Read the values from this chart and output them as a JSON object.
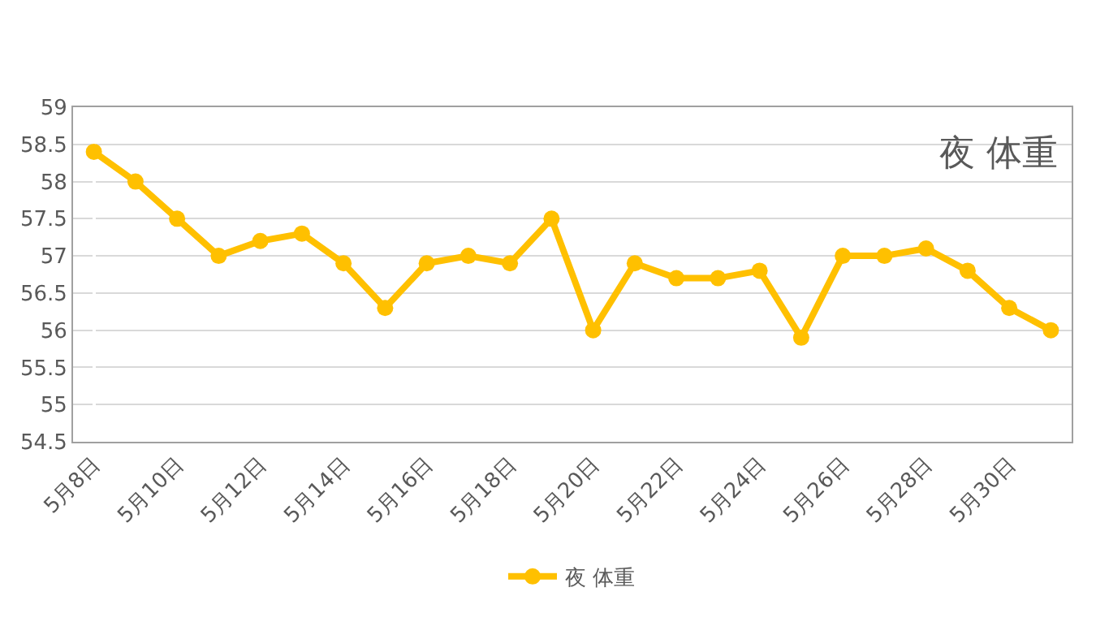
{
  "chart_data": {
    "type": "line",
    "title": "夜 体重",
    "categories": [
      "5月8日",
      null,
      "5月10日",
      null,
      "5月12日",
      null,
      "5月14日",
      null,
      "5月16日",
      null,
      "5月18日",
      null,
      "5月20日",
      null,
      "5月22日",
      null,
      "5月24日",
      null,
      "5月26日",
      null,
      "5月28日",
      null,
      "5月30日",
      null
    ],
    "series": [
      {
        "name": "夜 体重",
        "color": "#ffc000",
        "values": [
          58.4,
          58.0,
          57.5,
          57.0,
          57.2,
          57.3,
          56.9,
          56.3,
          56.9,
          57.0,
          56.9,
          57.5,
          56.0,
          56.9,
          56.7,
          56.7,
          56.8,
          55.9,
          57.0,
          57.0,
          57.1,
          56.8,
          56.3,
          56.0
        ]
      }
    ],
    "ylim": [
      54.5,
      59
    ],
    "yticks": [
      54.5,
      55,
      55.5,
      56,
      56.5,
      57,
      57.5,
      58,
      58.5,
      59
    ],
    "grid": "y",
    "legend": "bottom",
    "marker": "circle",
    "line_style": "solid"
  }
}
